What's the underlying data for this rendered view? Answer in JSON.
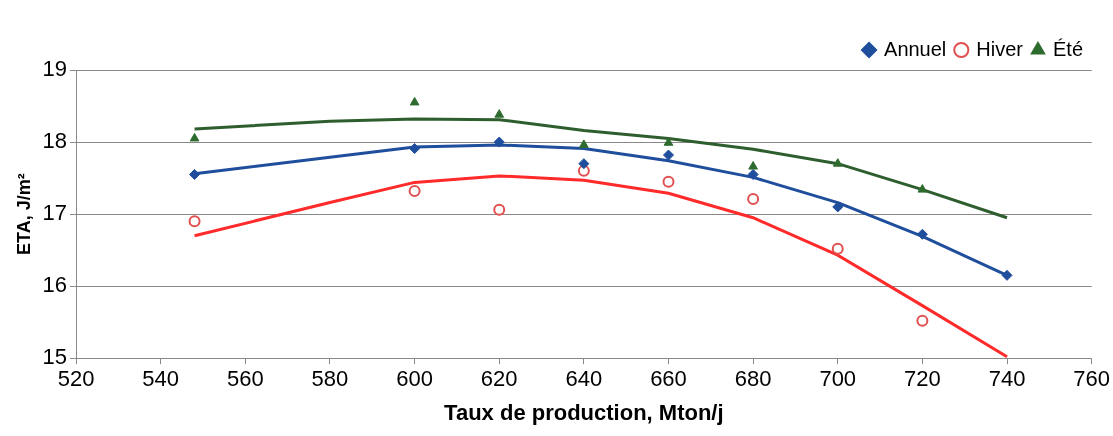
{
  "chart_data": {
    "type": "scatter",
    "xlabel": "Taux de production, Mton/j",
    "ylabel": "ETA, J/m²",
    "xlim": [
      520,
      760
    ],
    "xticks": [
      520,
      540,
      560,
      580,
      600,
      620,
      640,
      660,
      680,
      700,
      720,
      740,
      760
    ],
    "ylim": [
      15,
      19
    ],
    "yticks": [
      15,
      16,
      17,
      18,
      19
    ],
    "grid": "y",
    "legend": "top right",
    "series": [
      {
        "name": "Annuel",
        "color": "#1f4e9c",
        "marker": "diamond",
        "x": [
          548,
          600,
          620,
          640,
          660,
          680,
          700,
          720,
          740
        ],
        "values": [
          17.55,
          17.91,
          18.0,
          17.7,
          17.82,
          17.55,
          17.1,
          16.72,
          16.15
        ]
      },
      {
        "name": "Hiver",
        "color": "#e05050",
        "marker": "circle",
        "x": [
          548,
          600,
          620,
          640,
          660,
          680,
          700,
          720
        ],
        "values": [
          16.9,
          17.32,
          17.06,
          17.6,
          17.45,
          17.21,
          16.52,
          15.52
        ]
      },
      {
        "name": "Été",
        "color": "#2e6b2e",
        "marker": "triangle",
        "x": [
          548,
          600,
          620,
          640,
          660,
          680,
          700,
          720
        ],
        "values": [
          18.05,
          18.55,
          18.38,
          17.96,
          17.99,
          17.66,
          17.7,
          17.34
        ]
      },
      {
        "type": "line",
        "color": "#1f4e9c",
        "marker": "none",
        "x": [
          548,
          580,
          600,
          620,
          640,
          660,
          680,
          700,
          720,
          740
        ],
        "values": [
          17.56,
          17.79,
          17.93,
          17.96,
          17.91,
          17.74,
          17.51,
          17.16,
          16.69,
          16.15
        ]
      },
      {
        "type": "line",
        "color": "#ff2a2a",
        "marker": "none",
        "x": [
          548,
          580,
          600,
          620,
          640,
          660,
          680,
          700,
          720,
          740
        ],
        "values": [
          16.7,
          17.16,
          17.44,
          17.53,
          17.47,
          17.29,
          16.95,
          16.43,
          15.73,
          15.02
        ]
      },
      {
        "type": "line",
        "color": "#2e5e2e",
        "marker": "none",
        "x": [
          548,
          580,
          600,
          620,
          640,
          660,
          680,
          700,
          720,
          740
        ],
        "values": [
          18.18,
          18.29,
          18.32,
          18.31,
          18.16,
          18.05,
          17.9,
          17.7,
          17.34,
          16.95
        ]
      }
    ]
  }
}
